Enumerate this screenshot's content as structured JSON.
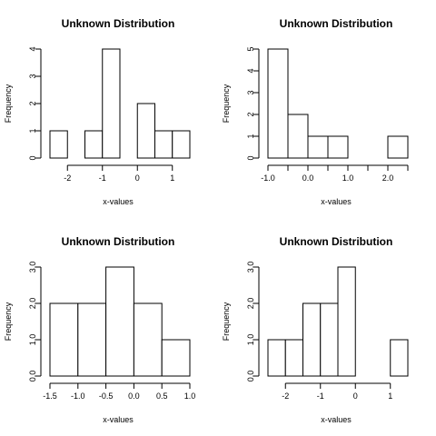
{
  "chart_data": [
    {
      "type": "bar",
      "title": "Unknown Distribution",
      "xlabel": "x-values",
      "ylabel": "Frequency",
      "bin_edges": [
        -2.5,
        -2.0,
        -1.5,
        -1.0,
        -0.5,
        0.0,
        0.5,
        1.0,
        1.5
      ],
      "values": [
        1,
        0,
        1,
        4,
        0,
        2,
        1,
        1
      ],
      "xlim": [
        -2.5,
        1.5
      ],
      "ylim": [
        0,
        4
      ],
      "x_ticks": [
        -2,
        -1,
        0,
        1
      ],
      "x_tick_labels": [
        "-2",
        "-1",
        "0",
        "1"
      ],
      "y_ticks": [
        0,
        1,
        2,
        3,
        4
      ],
      "y_tick_labels": [
        "0",
        "1",
        "2",
        "3",
        "4"
      ]
    },
    {
      "type": "bar",
      "title": "Unknown Distribution",
      "xlabel": "x-values",
      "ylabel": "Frequency",
      "bin_edges": [
        -1.0,
        -0.5,
        0.0,
        0.5,
        1.0,
        1.5,
        2.0,
        2.5
      ],
      "values": [
        5,
        2,
        1,
        1,
        0,
        0,
        1
      ],
      "xlim": [
        -1.0,
        2.5
      ],
      "ylim": [
        0,
        5
      ],
      "x_ticks": [
        -1.0,
        -0.5,
        0.0,
        0.5,
        1.0,
        1.5,
        2.0,
        2.5
      ],
      "x_tick_labels": [
        "-1.0",
        "",
        "0.0",
        "",
        "1.0",
        "",
        "2.0",
        ""
      ],
      "y_ticks": [
        0,
        1,
        2,
        3,
        4,
        5
      ],
      "y_tick_labels": [
        "0",
        "1",
        "2",
        "3",
        "4",
        "5"
      ]
    },
    {
      "type": "bar",
      "title": "Unknown Distribution",
      "xlabel": "x-values",
      "ylabel": "Frequency",
      "bin_edges": [
        -1.5,
        -1.0,
        -0.5,
        0.0,
        0.5,
        1.0
      ],
      "values": [
        2,
        2,
        3,
        2,
        1
      ],
      "xlim": [
        -1.5,
        1.0
      ],
      "ylim": [
        0,
        3
      ],
      "x_ticks": [
        -1.5,
        -1.0,
        -0.5,
        0.0,
        0.5,
        1.0
      ],
      "x_tick_labels": [
        "-1.5",
        "-1.0",
        "-0.5",
        "0.0",
        "0.5",
        "1.0"
      ],
      "y_ticks": [
        0,
        1,
        2,
        3
      ],
      "y_tick_labels": [
        "0.0",
        "1.0",
        "2.0",
        "3.0"
      ]
    },
    {
      "type": "bar",
      "title": "Unknown Distribution",
      "xlabel": "x-values",
      "ylabel": "Frequency",
      "bin_edges": [
        -2.5,
        -2.0,
        -1.5,
        -1.0,
        -0.5,
        0.0,
        0.5,
        1.0,
        1.5
      ],
      "values": [
        1,
        1,
        2,
        2,
        3,
        0,
        0,
        1
      ],
      "xlim": [
        -2.5,
        1.5
      ],
      "ylim": [
        0,
        3
      ],
      "x_ticks": [
        -2,
        -1,
        0,
        1
      ],
      "x_tick_labels": [
        "-2",
        "-1",
        "0",
        "1"
      ],
      "y_ticks": [
        0,
        1,
        2,
        3
      ],
      "y_tick_labels": [
        "0.0",
        "1.0",
        "2.0",
        "3.0"
      ]
    }
  ]
}
